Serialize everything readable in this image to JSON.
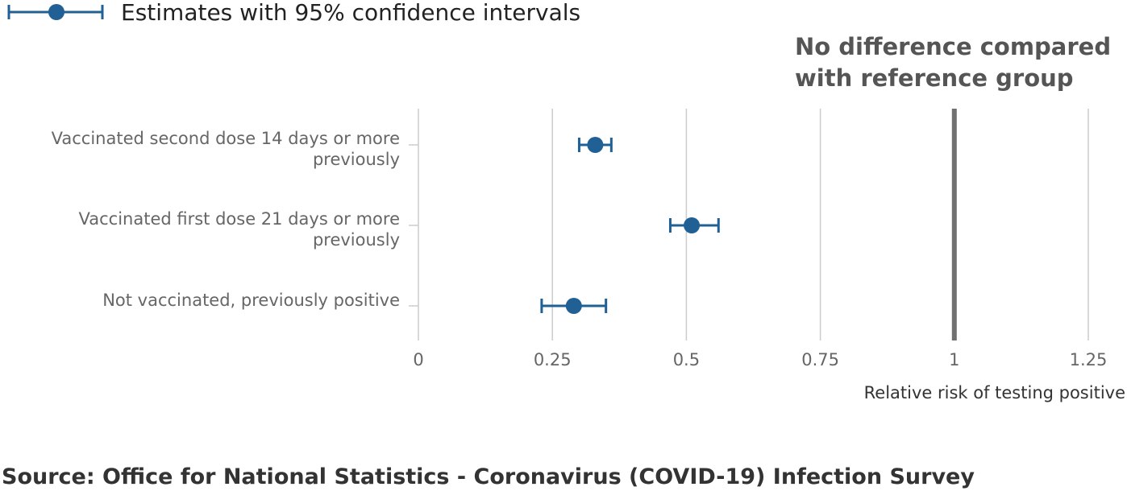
{
  "chart_data": {
    "type": "scatter",
    "subtype": "forest-plot",
    "legend": {
      "label": "Estimates with 95% confidence intervals",
      "placement": "top-left"
    },
    "reference": {
      "value": 1,
      "label_lines": [
        "No difference compared",
        "with reference group"
      ]
    },
    "categories": [
      {
        "label_lines": [
          "Vaccinated second dose 14 days or more",
          "previously"
        ],
        "estimate": 0.33,
        "lower": 0.3,
        "upper": 0.36
      },
      {
        "label_lines": [
          "Vaccinated first dose 21 days or more",
          "previously"
        ],
        "estimate": 0.51,
        "lower": 0.47,
        "upper": 0.56
      },
      {
        "label_lines": [
          "Not vaccinated, previously positive"
        ],
        "estimate": 0.29,
        "lower": 0.23,
        "upper": 0.35
      }
    ],
    "xlabel": "Relative risk of testing positive",
    "xlim": [
      0,
      1.25
    ],
    "xticks": [
      0,
      0.25,
      0.5,
      0.75,
      1,
      1.25
    ],
    "xtick_labels": [
      "0",
      "0.25",
      "0.5",
      "0.75",
      "1",
      "1.25"
    ],
    "grid": "vertical",
    "colors": {
      "series": "#206095",
      "grid": "#cccccc",
      "reference": "#707070"
    },
    "source": "Source: Office for National Statistics - Coronavirus (COVID-19) Infection Survey"
  }
}
